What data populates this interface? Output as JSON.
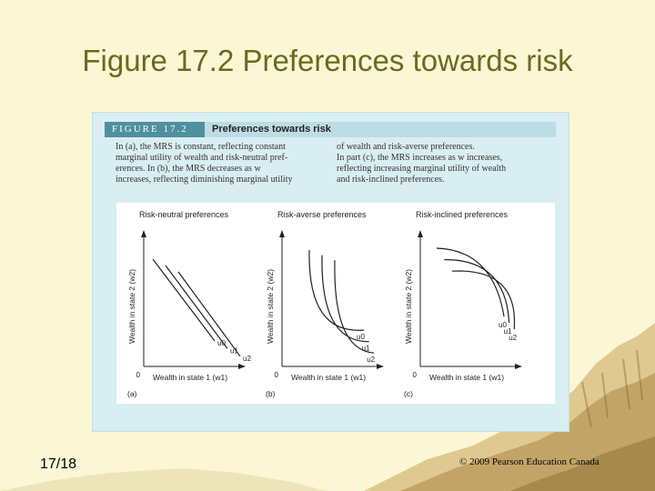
{
  "slide": {
    "title": "Figure 17.2 Preferences towards risk",
    "number": "17/18",
    "copyright": "© 2009 Pearson Education Canada"
  },
  "figure": {
    "number_label": "FIGURE 17.2",
    "heading": "Preferences towards risk",
    "caption_left": [
      "In (a), the MRS is constant, reflecting constant",
      "marginal utility of wealth and risk-neutral pref-",
      "erences. In (b), the MRS decreases as w",
      "increases, reflecting diminishing marginal utility"
    ],
    "caption_right": [
      "of wealth and risk-averse preferences.",
      "In part (c), the MRS increases as w increases,",
      "reflecting increasing marginal utility of wealth",
      "and risk-inclined preferences."
    ]
  },
  "panels": [
    {
      "id": "a",
      "title": "Risk-neutral preferences",
      "panel_label": "(a)",
      "xlabel": "Wealth in state 1 (w1)",
      "ylabel": "Wealth in state 2 (w2)",
      "origin": "0",
      "curve_labels": [
        "u0",
        "u1",
        "u2"
      ],
      "curve_type": "linear"
    },
    {
      "id": "b",
      "title": "Risk-averse preferences",
      "panel_label": "(b)",
      "xlabel": "Wealth in state 1 (w1)",
      "ylabel": "Wealth in state 2 (w2)",
      "origin": "0",
      "curve_labels": [
        "u0",
        "u1",
        "u2"
      ],
      "curve_type": "convex"
    },
    {
      "id": "c",
      "title": "Risk-inclined preferences",
      "panel_label": "(c)",
      "xlabel": "Wealth in state 1 (w1)",
      "ylabel": "Wealth in state 2 (w2)",
      "origin": "0",
      "curve_labels": [
        "u0",
        "u1",
        "u2"
      ],
      "curve_type": "concave"
    }
  ],
  "colors": {
    "slide_background": "#fbf7d5",
    "title_text": "#6b6a1f",
    "figure_panel": "#d9eef2",
    "figure_number_bg": "#4f8fa0",
    "curve": "#222222"
  }
}
